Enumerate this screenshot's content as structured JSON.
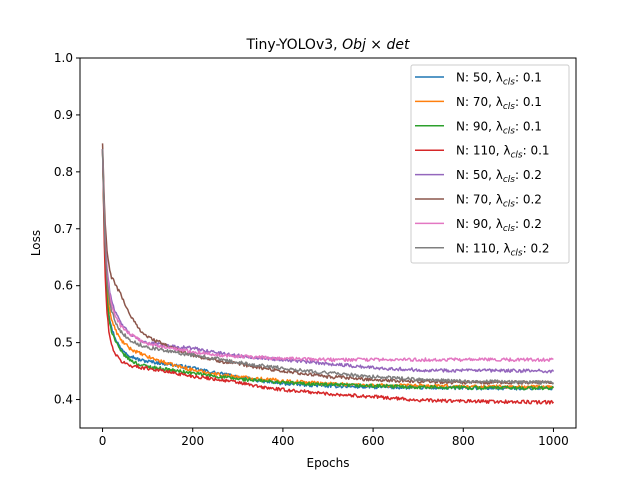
{
  "chart_data": {
    "type": "line",
    "title": {
      "plain": "Tiny-YOLOv3, ",
      "math": "Obj × det"
    },
    "xlabel": "Epochs",
    "ylabel": "Loss",
    "xlim": [
      -50,
      1050
    ],
    "ylim": [
      0.35,
      1.0
    ],
    "xticks": [
      0,
      200,
      400,
      600,
      800,
      1000
    ],
    "yticks": [
      0.4,
      0.5,
      0.6,
      0.7,
      0.8,
      0.9,
      1.0
    ],
    "legend_position": "top-right",
    "series": [
      {
        "name": "N: 50, λ_cls: 0.1",
        "label_prefix": "N: 50, λ",
        "label_sub": "cls",
        "label_suffix": ": 0.1",
        "color": "#1f77b4",
        "points": [
          [
            0,
            0.84
          ],
          [
            5,
            0.66
          ],
          [
            10,
            0.58
          ],
          [
            15,
            0.545
          ],
          [
            20,
            0.525
          ],
          [
            30,
            0.505
          ],
          [
            40,
            0.49
          ],
          [
            60,
            0.478
          ],
          [
            80,
            0.47
          ],
          [
            100,
            0.467
          ],
          [
            150,
            0.462
          ],
          [
            200,
            0.455
          ],
          [
            250,
            0.447
          ],
          [
            300,
            0.44
          ],
          [
            350,
            0.433
          ],
          [
            400,
            0.428
          ],
          [
            500,
            0.424
          ],
          [
            600,
            0.422
          ],
          [
            700,
            0.421
          ],
          [
            800,
            0.42
          ],
          [
            1000,
            0.42
          ]
        ]
      },
      {
        "name": "N: 70, λ_cls: 0.1",
        "label_prefix": "N: 70, λ",
        "label_sub": "cls",
        "label_suffix": ": 0.1",
        "color": "#ff7f0e",
        "points": [
          [
            0,
            0.84
          ],
          [
            5,
            0.67
          ],
          [
            10,
            0.6
          ],
          [
            15,
            0.56
          ],
          [
            20,
            0.54
          ],
          [
            30,
            0.52
          ],
          [
            40,
            0.505
          ],
          [
            60,
            0.49
          ],
          [
            80,
            0.482
          ],
          [
            100,
            0.475
          ],
          [
            150,
            0.462
          ],
          [
            200,
            0.452
          ],
          [
            250,
            0.445
          ],
          [
            300,
            0.44
          ],
          [
            400,
            0.433
          ],
          [
            500,
            0.428
          ],
          [
            600,
            0.425
          ],
          [
            700,
            0.424
          ],
          [
            800,
            0.423
          ],
          [
            1000,
            0.422
          ]
        ]
      },
      {
        "name": "N: 90, λ_cls: 0.1",
        "label_prefix": "N: 90, λ",
        "label_sub": "cls",
        "label_suffix": ": 0.1",
        "color": "#2ca02c",
        "points": [
          [
            0,
            0.84
          ],
          [
            5,
            0.65
          ],
          [
            10,
            0.575
          ],
          [
            15,
            0.54
          ],
          [
            20,
            0.52
          ],
          [
            30,
            0.5
          ],
          [
            40,
            0.485
          ],
          [
            60,
            0.47
          ],
          [
            80,
            0.462
          ],
          [
            100,
            0.458
          ],
          [
            150,
            0.452
          ],
          [
            200,
            0.446
          ],
          [
            250,
            0.441
          ],
          [
            300,
            0.436
          ],
          [
            400,
            0.43
          ],
          [
            500,
            0.426
          ],
          [
            600,
            0.424
          ],
          [
            700,
            0.422
          ],
          [
            800,
            0.421
          ],
          [
            1000,
            0.42
          ]
        ]
      },
      {
        "name": "N: 110, λ_cls: 0.1",
        "label_prefix": "N: 110, λ",
        "label_sub": "cls",
        "label_suffix": ": 0.1",
        "color": "#d62728",
        "points": [
          [
            0,
            0.84
          ],
          [
            5,
            0.63
          ],
          [
            10,
            0.55
          ],
          [
            15,
            0.515
          ],
          [
            20,
            0.495
          ],
          [
            30,
            0.478
          ],
          [
            40,
            0.468
          ],
          [
            60,
            0.46
          ],
          [
            80,
            0.457
          ],
          [
            100,
            0.455
          ],
          [
            150,
            0.448
          ],
          [
            200,
            0.441
          ],
          [
            250,
            0.436
          ],
          [
            300,
            0.43
          ],
          [
            350,
            0.422
          ],
          [
            400,
            0.417
          ],
          [
            450,
            0.414
          ],
          [
            500,
            0.41
          ],
          [
            600,
            0.405
          ],
          [
            700,
            0.399
          ],
          [
            800,
            0.397
          ],
          [
            900,
            0.396
          ],
          [
            1000,
            0.395
          ]
        ]
      },
      {
        "name": "N: 50, λ_cls: 0.2",
        "label_prefix": "N: 50, λ",
        "label_sub": "cls",
        "label_suffix": ": 0.2",
        "color": "#9467bd",
        "points": [
          [
            0,
            0.84
          ],
          [
            5,
            0.7
          ],
          [
            10,
            0.63
          ],
          [
            15,
            0.595
          ],
          [
            20,
            0.575
          ],
          [
            30,
            0.55
          ],
          [
            40,
            0.535
          ],
          [
            60,
            0.515
          ],
          [
            80,
            0.505
          ],
          [
            100,
            0.5
          ],
          [
            150,
            0.494
          ],
          [
            200,
            0.49
          ],
          [
            250,
            0.483
          ],
          [
            300,
            0.477
          ],
          [
            400,
            0.47
          ],
          [
            500,
            0.463
          ],
          [
            600,
            0.456
          ],
          [
            700,
            0.452
          ],
          [
            800,
            0.451
          ],
          [
            1000,
            0.45
          ]
        ]
      },
      {
        "name": "N: 70, λ_cls: 0.2",
        "label_prefix": "N: 70, λ",
        "label_sub": "cls",
        "label_suffix": ": 0.2",
        "color": "#8c564b",
        "points": [
          [
            0,
            0.85
          ],
          [
            5,
            0.72
          ],
          [
            10,
            0.66
          ],
          [
            15,
            0.63
          ],
          [
            20,
            0.615
          ],
          [
            30,
            0.6
          ],
          [
            40,
            0.585
          ],
          [
            60,
            0.55
          ],
          [
            80,
            0.525
          ],
          [
            100,
            0.51
          ],
          [
            150,
            0.492
          ],
          [
            200,
            0.478
          ],
          [
            250,
            0.469
          ],
          [
            300,
            0.462
          ],
          [
            400,
            0.45
          ],
          [
            500,
            0.44
          ],
          [
            600,
            0.435
          ],
          [
            700,
            0.432
          ],
          [
            800,
            0.43
          ],
          [
            1000,
            0.43
          ]
        ]
      },
      {
        "name": "N: 90, λ_cls: 0.2",
        "label_prefix": "N: 90, λ",
        "label_sub": "cls",
        "label_suffix": ": 0.2",
        "color": "#e377c2",
        "points": [
          [
            0,
            0.84
          ],
          [
            5,
            0.69
          ],
          [
            10,
            0.62
          ],
          [
            15,
            0.585
          ],
          [
            20,
            0.565
          ],
          [
            30,
            0.545
          ],
          [
            40,
            0.53
          ],
          [
            60,
            0.515
          ],
          [
            80,
            0.505
          ],
          [
            100,
            0.498
          ],
          [
            150,
            0.49
          ],
          [
            200,
            0.484
          ],
          [
            250,
            0.479
          ],
          [
            300,
            0.476
          ],
          [
            400,
            0.472
          ],
          [
            500,
            0.47
          ],
          [
            600,
            0.47
          ],
          [
            700,
            0.47
          ],
          [
            800,
            0.47
          ],
          [
            1000,
            0.47
          ]
        ]
      },
      {
        "name": "N: 110, λ_cls: 0.2",
        "label_prefix": "N: 110, λ",
        "label_sub": "cls",
        "label_suffix": ": 0.2",
        "color": "#7f7f7f",
        "points": [
          [
            0,
            0.84
          ],
          [
            5,
            0.68
          ],
          [
            10,
            0.61
          ],
          [
            15,
            0.575
          ],
          [
            20,
            0.555
          ],
          [
            30,
            0.535
          ],
          [
            40,
            0.52
          ],
          [
            60,
            0.505
          ],
          [
            80,
            0.497
          ],
          [
            100,
            0.492
          ],
          [
            150,
            0.484
          ],
          [
            200,
            0.478
          ],
          [
            250,
            0.472
          ],
          [
            300,
            0.465
          ],
          [
            400,
            0.455
          ],
          [
            500,
            0.447
          ],
          [
            600,
            0.44
          ],
          [
            700,
            0.435
          ],
          [
            800,
            0.432
          ],
          [
            1000,
            0.43
          ]
        ]
      }
    ]
  }
}
